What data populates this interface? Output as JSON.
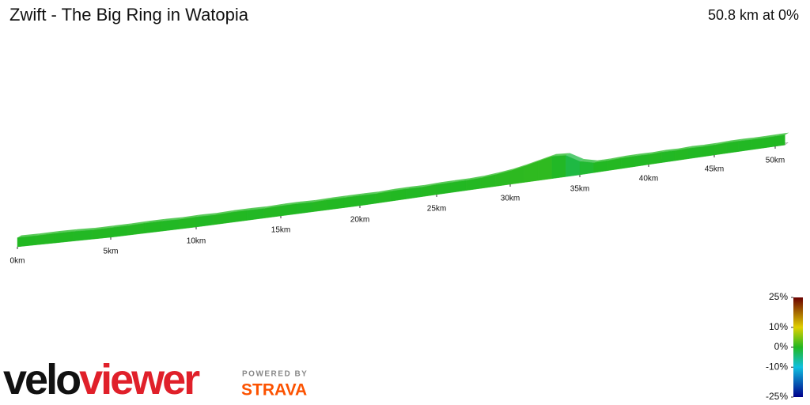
{
  "chart_data": {
    "type": "elevation-profile-3d",
    "title": "Zwift - The Big Ring in Watopia",
    "subtitle": "50.8 km at 0%",
    "x": [
      0,
      1,
      2,
      3,
      4,
      5,
      6,
      7,
      8,
      9,
      10,
      11,
      12,
      13,
      14,
      15,
      16,
      17,
      18,
      19,
      20,
      21,
      22,
      23,
      24,
      25,
      26,
      27,
      28,
      29,
      30,
      31,
      32,
      33,
      34,
      35,
      36,
      37,
      38,
      39,
      40,
      41,
      42,
      43,
      44,
      45,
      46,
      47,
      48,
      49,
      50,
      50.8
    ],
    "series": [
      {
        "name": "Elevation",
        "values": [
          10,
          10,
          11,
          11,
          10,
          11,
          11,
          12,
          12,
          11,
          12,
          11,
          12,
          12,
          11,
          12,
          12,
          11,
          12,
          12,
          12,
          11,
          12,
          12,
          11,
          12,
          12,
          12,
          13,
          16,
          20,
          26,
          33,
          40,
          38,
          20,
          12,
          12,
          13,
          13,
          12,
          13,
          12,
          13,
          12,
          12,
          13,
          13,
          12,
          12,
          12,
          12
        ]
      }
    ],
    "xticks": [
      {
        "value": 0,
        "label": "0km"
      },
      {
        "value": 5,
        "label": "5km"
      },
      {
        "value": 10,
        "label": "10km"
      },
      {
        "value": 15,
        "label": "15km"
      },
      {
        "value": 20,
        "label": "20km"
      },
      {
        "value": 25,
        "label": "25km"
      },
      {
        "value": 30,
        "label": "30km"
      },
      {
        "value": 35,
        "label": "35km"
      },
      {
        "value": 40,
        "label": "40km"
      },
      {
        "value": 45,
        "label": "45km"
      },
      {
        "value": 50,
        "label": "50km"
      }
    ],
    "colorticks": [
      {
        "value": 25,
        "label": "25%"
      },
      {
        "value": 10,
        "label": "10%"
      },
      {
        "value": 0,
        "label": "0%"
      },
      {
        "value": -10,
        "label": "-10%"
      },
      {
        "value": -25,
        "label": "-25%"
      }
    ],
    "colorticks_colors": [
      "#6b0000",
      "#e0d000",
      "#22b822",
      "#10c0e0",
      "#00008b"
    ],
    "brand": {
      "name_a": "velo",
      "name_b": "viewer",
      "powered": "POWERED BY",
      "partner": "STRAVA"
    }
  }
}
